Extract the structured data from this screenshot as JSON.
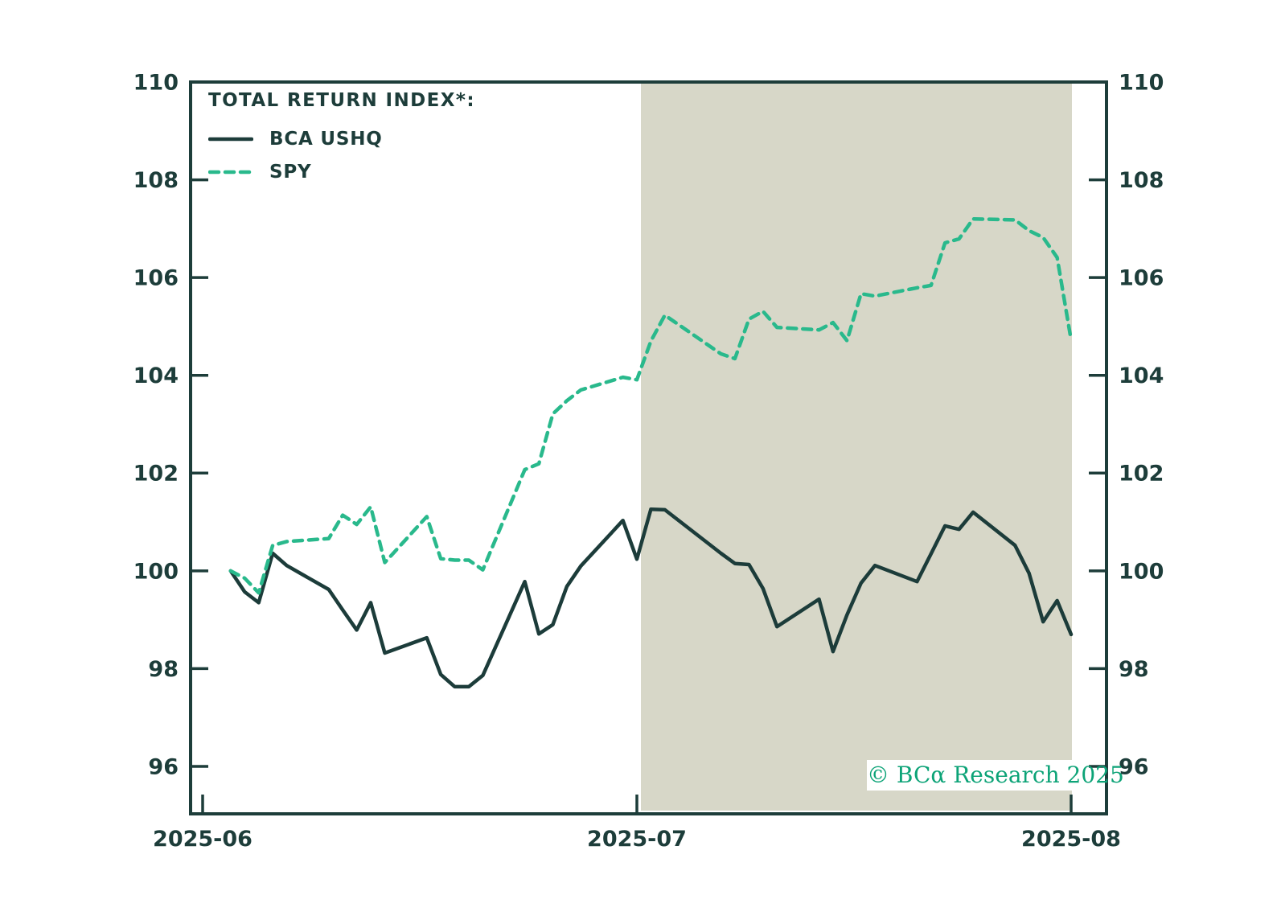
{
  "chart_data": {
    "type": "line",
    "title": "TOTAL RETURN INDEX*:",
    "xlabel": "",
    "ylabel": "",
    "grid": false,
    "legend_position": "top-left",
    "watermark": "© BCα Research 2025",
    "colors": {
      "axis_and_text": "#1d3d3a",
      "bca_ushq_line": "#1c3c3a",
      "spy_line": "#29b98c",
      "highlight_fill": "#d7d7c8",
      "watermark_green": "#0ca377",
      "background": "#ffffff"
    },
    "y_ticks": [
      96,
      98,
      100,
      102,
      104,
      106,
      108,
      110
    ],
    "ylim": [
      95.0,
      110.0
    ],
    "x_tick_labels": [
      "2025-06",
      "2025-07",
      "2025-08"
    ],
    "x_range": [
      "2025-06-01",
      "2025-08-03"
    ],
    "highlight_region": {
      "start": "2025-07-01",
      "end": "2025-08-01"
    },
    "series": [
      {
        "name": "BCA USHQ",
        "style": "solid",
        "color": "#1c3c3a",
        "points": [
          [
            "2025-06-02",
            100.0
          ],
          [
            "2025-06-03",
            99.57
          ],
          [
            "2025-06-04",
            99.35
          ],
          [
            "2025-06-05",
            100.36
          ],
          [
            "2025-06-06",
            100.11
          ],
          [
            "2025-06-09",
            99.62
          ],
          [
            "2025-06-10",
            99.2
          ],
          [
            "2025-06-11",
            98.79
          ],
          [
            "2025-06-12",
            99.35
          ],
          [
            "2025-06-13",
            98.32
          ],
          [
            "2025-06-16",
            98.63
          ],
          [
            "2025-06-17",
            97.88
          ],
          [
            "2025-06-18",
            97.63
          ],
          [
            "2025-06-19",
            97.63
          ],
          [
            "2025-06-20",
            97.86
          ],
          [
            "2025-06-23",
            99.78
          ],
          [
            "2025-06-24",
            98.71
          ],
          [
            "2025-06-25",
            98.9
          ],
          [
            "2025-06-26",
            99.68
          ],
          [
            "2025-06-27",
            100.1
          ],
          [
            "2025-06-30",
            101.03
          ],
          [
            "2025-07-01",
            100.24
          ],
          [
            "2025-07-02",
            101.26
          ],
          [
            "2025-07-03",
            101.25
          ],
          [
            "2025-07-07",
            100.36
          ],
          [
            "2025-07-08",
            100.15
          ],
          [
            "2025-07-09",
            100.13
          ],
          [
            "2025-07-10",
            99.64
          ],
          [
            "2025-07-11",
            98.86
          ],
          [
            "2025-07-14",
            99.42
          ],
          [
            "2025-07-15",
            98.35
          ],
          [
            "2025-07-16",
            99.1
          ],
          [
            "2025-07-17",
            99.75
          ],
          [
            "2025-07-18",
            100.11
          ],
          [
            "2025-07-21",
            99.78
          ],
          [
            "2025-07-22",
            100.35
          ],
          [
            "2025-07-23",
            100.92
          ],
          [
            "2025-07-24",
            100.85
          ],
          [
            "2025-07-25",
            101.2
          ],
          [
            "2025-07-28",
            100.52
          ],
          [
            "2025-07-29",
            99.95
          ],
          [
            "2025-07-30",
            98.96
          ],
          [
            "2025-07-31",
            99.39
          ],
          [
            "2025-08-01",
            98.7
          ]
        ]
      },
      {
        "name": "SPY",
        "style": "dashed",
        "color": "#29b98c",
        "points": [
          [
            "2025-06-02",
            100.0
          ],
          [
            "2025-06-03",
            99.85
          ],
          [
            "2025-06-04",
            99.55
          ],
          [
            "2025-06-05",
            100.52
          ],
          [
            "2025-06-06",
            100.6
          ],
          [
            "2025-06-09",
            100.66
          ],
          [
            "2025-06-10",
            101.14
          ],
          [
            "2025-06-11",
            100.95
          ],
          [
            "2025-06-12",
            101.31
          ],
          [
            "2025-06-13",
            100.17
          ],
          [
            "2025-06-16",
            101.11
          ],
          [
            "2025-06-17",
            100.25
          ],
          [
            "2025-06-18",
            100.22
          ],
          [
            "2025-06-19",
            100.22
          ],
          [
            "2025-06-20",
            100.02
          ],
          [
            "2025-06-23",
            102.07
          ],
          [
            "2025-06-24",
            102.19
          ],
          [
            "2025-06-25",
            103.21
          ],
          [
            "2025-06-26",
            103.48
          ],
          [
            "2025-06-27",
            103.7
          ],
          [
            "2025-06-30",
            103.96
          ],
          [
            "2025-07-01",
            103.91
          ],
          [
            "2025-07-02",
            104.7
          ],
          [
            "2025-07-03",
            105.23
          ],
          [
            "2025-07-07",
            104.44
          ],
          [
            "2025-07-08",
            104.34
          ],
          [
            "2025-07-09",
            105.15
          ],
          [
            "2025-07-10",
            105.31
          ],
          [
            "2025-07-11",
            104.98
          ],
          [
            "2025-07-14",
            104.93
          ],
          [
            "2025-07-15",
            105.08
          ],
          [
            "2025-07-16",
            104.71
          ],
          [
            "2025-07-17",
            105.67
          ],
          [
            "2025-07-18",
            105.62
          ],
          [
            "2025-07-21",
            105.79
          ],
          [
            "2025-07-22",
            105.84
          ],
          [
            "2025-07-23",
            106.71
          ],
          [
            "2025-07-24",
            106.79
          ],
          [
            "2025-07-25",
            107.2
          ],
          [
            "2025-07-28",
            107.18
          ],
          [
            "2025-07-29",
            106.96
          ],
          [
            "2025-07-30",
            106.82
          ],
          [
            "2025-07-31",
            106.41
          ],
          [
            "2025-08-01",
            104.72
          ]
        ]
      }
    ]
  }
}
